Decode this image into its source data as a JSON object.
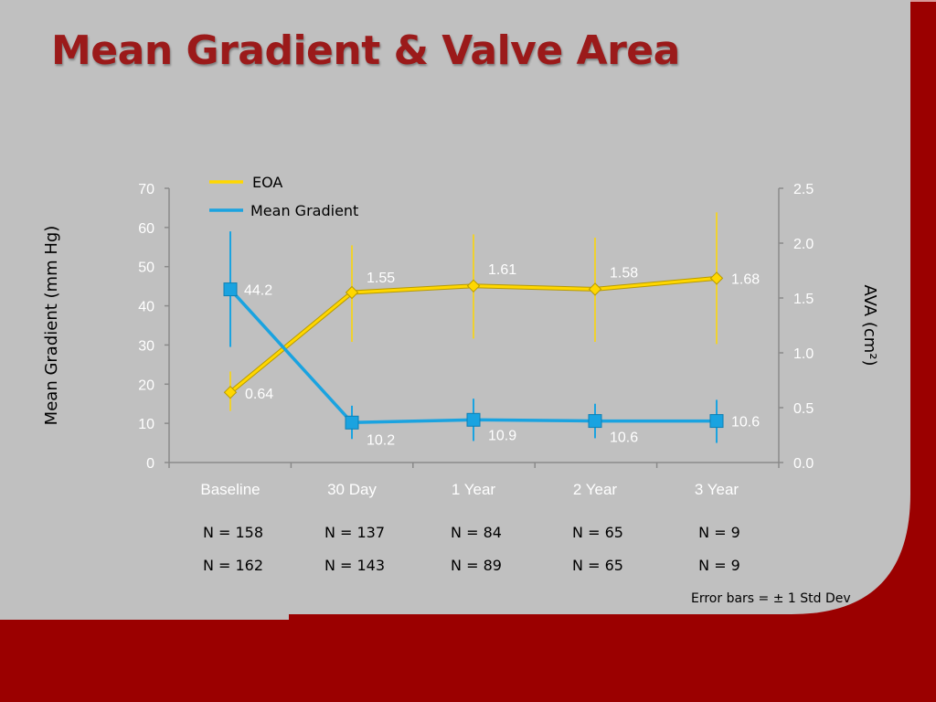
{
  "title": "Mean Gradient & Valve Area",
  "colors": {
    "background": "#c0c0c0",
    "accent": "#9b0000",
    "title": "#9b1a1a",
    "eoa": "#ffd700",
    "mean_gradient": "#1aa3e0"
  },
  "chart_data": {
    "type": "line",
    "categories": [
      "Baseline",
      "30 Day",
      "1 Year",
      "2 Year",
      "3 Year"
    ],
    "y_left": {
      "label": "Mean Gradient (mm Hg)",
      "lim": [
        0,
        70
      ],
      "ticks": [
        "0",
        "10",
        "20",
        "30",
        "40",
        "50",
        "60",
        "70"
      ]
    },
    "y_right": {
      "label": "AVA (cm²)",
      "lim": [
        0,
        2.5
      ],
      "ticks": [
        "0.0",
        "0.5",
        "1.0",
        "1.5",
        "2.0",
        "2.5"
      ]
    },
    "grid": false,
    "legend": "top-left",
    "series": [
      {
        "name": "EOA",
        "axis": "right",
        "values": [
          0.64,
          1.55,
          1.61,
          1.58,
          1.68
        ],
        "labels": [
          "0.64",
          "1.55",
          "1.61",
          "1.58",
          "1.68"
        ],
        "error_low": [
          0.47,
          1.1,
          1.13,
          1.1,
          1.08
        ],
        "error_high": [
          0.83,
          1.98,
          2.08,
          2.05,
          2.28
        ]
      },
      {
        "name": "Mean Gradient",
        "axis": "left",
        "values": [
          44.2,
          10.2,
          10.9,
          10.6,
          10.6
        ],
        "labels": [
          "44.2",
          "10.2",
          "10.9",
          "10.6",
          "10.6"
        ],
        "error_low": [
          29.5,
          6,
          5.5,
          6.2,
          5
        ],
        "error_high": [
          59,
          14.5,
          16.3,
          15,
          16
        ]
      }
    ]
  },
  "n_rows": [
    [
      "N = 158",
      "N = 137",
      "N = 84",
      "N = 65",
      "N = 9"
    ],
    [
      "N = 162",
      "N = 143",
      "N = 89",
      "N = 65",
      "N = 9"
    ]
  ],
  "note": "Error bars = ± 1 Std Dev"
}
